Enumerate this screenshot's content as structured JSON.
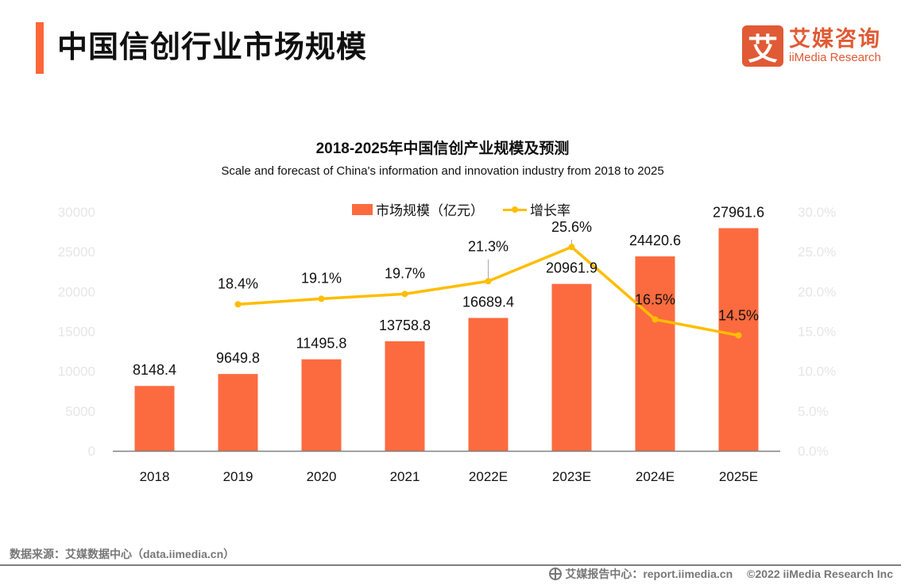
{
  "header": {
    "title": "中国信创行业市场规模",
    "logo_glyph": "艾",
    "logo_cn": "艾媒咨询",
    "logo_en": "iiMedia Research"
  },
  "colors": {
    "accent": "#fc6637",
    "bar": "#fc6b3f",
    "line": "#ffbd00",
    "logo": "#e05a35",
    "axis_text": "#e6e6e6"
  },
  "chart_data": {
    "type": "bar",
    "title": "2018-2025年中国信创产业规模及预测",
    "subtitle": "Scale and forecast of China's information and innovation industry from 2018 to 2025",
    "categories": [
      "2018",
      "2019",
      "2020",
      "2021",
      "2022E",
      "2023E",
      "2024E",
      "2025E"
    ],
    "series": [
      {
        "name": "市场规模（亿元）",
        "type": "bar",
        "axis": "left",
        "values": [
          8148.4,
          9649.8,
          11495.8,
          13758.8,
          16689.4,
          20961.9,
          24420.6,
          27961.6
        ],
        "labels": [
          "8148.4",
          "9649.8",
          "11495.8",
          "13758.8",
          "16689.4",
          "20961.9",
          "24420.6",
          "27961.6"
        ]
      },
      {
        "name": "增长率",
        "type": "line",
        "axis": "right",
        "values": [
          null,
          18.4,
          19.1,
          19.7,
          21.3,
          25.6,
          16.5,
          14.5
        ],
        "labels": [
          "",
          "18.4%",
          "19.1%",
          "19.7%",
          "21.3%",
          "25.6%",
          "16.5%",
          "14.5%"
        ]
      }
    ],
    "y_left": {
      "min": 0,
      "max": 30000,
      "ticks": [
        "0",
        "5000",
        "10000",
        "15000",
        "20000",
        "25000",
        "30000"
      ]
    },
    "y_right": {
      "min": 0,
      "max": 30,
      "ticks": [
        "0.0%",
        "5.0%",
        "10.0%",
        "15.0%",
        "20.0%",
        "25.0%",
        "30.0%"
      ]
    },
    "xlabel": "",
    "ylabel": "",
    "grid": false,
    "legend": "top-center",
    "legend_items": [
      "市场规模（亿元）",
      "增长率"
    ]
  },
  "footer": {
    "source": "数据来源：艾媒数据中心（data.iimedia.cn）",
    "report_center": "艾媒报告中心：report.iimedia.cn",
    "copyright": "©2022  iiMedia Research  Inc"
  }
}
